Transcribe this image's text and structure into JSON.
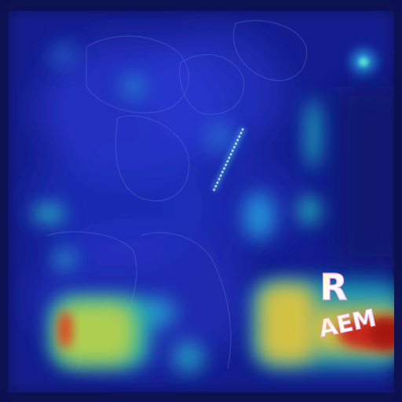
{
  "image": {
    "description_kind": "heatmap-overlay-on-xray",
    "colormap": "jet",
    "background_color": "#0b0f4a",
    "markers": {
      "side_letter": "R",
      "label_text": "AEM"
    }
  }
}
